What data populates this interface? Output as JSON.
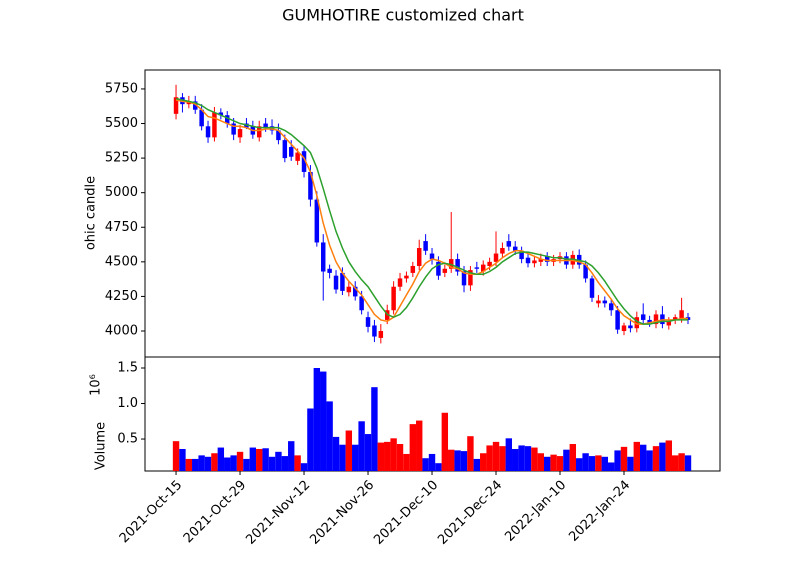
{
  "chart_data": {
    "type": "candlestick",
    "title": "GUMHOTIRE customized chart",
    "ylabel": "ohic candle",
    "volume_ylabel": "Volume",
    "volume_scale_label": "10⁶",
    "up_color": "#ff0000",
    "down_color": "#0000ff",
    "x": [
      0,
      1,
      2,
      3,
      4,
      5,
      6,
      7,
      8,
      9,
      10,
      11,
      12,
      13,
      14,
      15,
      16,
      17,
      18,
      19,
      20,
      21,
      22,
      23,
      24,
      25,
      26,
      27,
      28,
      29,
      30,
      31,
      32,
      33,
      34,
      35,
      36,
      37,
      38,
      39,
      40,
      41,
      42,
      43,
      44,
      45,
      46,
      47,
      48,
      49,
      50,
      51,
      52,
      53,
      54,
      55,
      56,
      57,
      58,
      59,
      60,
      61,
      62,
      63,
      64,
      65,
      66,
      67,
      68,
      69,
      70,
      71,
      72,
      73,
      74,
      75,
      76,
      77,
      78,
      79,
      80
    ],
    "open": [
      5570,
      5690,
      5640,
      5660,
      5600,
      5480,
      5400,
      5580,
      5560,
      5500,
      5400,
      5500,
      5480,
      5400,
      5500,
      5480,
      5450,
      5380,
      5330,
      5230,
      5300,
      5150,
      4950,
      4640,
      4450,
      4400,
      4420,
      4280,
      4320,
      4250,
      4100,
      4040,
      3950,
      4080,
      4150,
      4320,
      4380,
      4420,
      4470,
      4650,
      4560,
      4500,
      4420,
      4450,
      4520,
      4430,
      4330,
      4460,
      4430,
      4470,
      4500,
      4560,
      4650,
      4610,
      4580,
      4530,
      4490,
      4500,
      4540,
      4500,
      4520,
      4540,
      4480,
      4550,
      4480,
      4380,
      4200,
      4220,
      4200,
      4150,
      4000,
      4040,
      4020,
      4120,
      4080,
      4050,
      4120,
      4040,
      4080,
      4090,
      4100
    ],
    "high": [
      5780,
      5720,
      5700,
      5700,
      5640,
      5520,
      5620,
      5610,
      5590,
      5540,
      5490,
      5540,
      5520,
      5520,
      5540,
      5530,
      5500,
      5420,
      5380,
      5320,
      5340,
      5200,
      5010,
      4700,
      4480,
      4440,
      4460,
      4360,
      4360,
      4290,
      4140,
      4080,
      4050,
      4190,
      4360,
      4420,
      4430,
      4500,
      4660,
      4700,
      4600,
      4540,
      4480,
      4860,
      4560,
      4470,
      4470,
      4500,
      4510,
      4530,
      4720,
      4640,
      4700,
      4650,
      4610,
      4570,
      4540,
      4560,
      4570,
      4550,
      4570,
      4570,
      4580,
      4590,
      4510,
      4400,
      4260,
      4250,
      4230,
      4180,
      4060,
      4090,
      4140,
      4200,
      4110,
      4150,
      4180,
      4100,
      4120,
      4240,
      4130
    ],
    "low": [
      5530,
      5580,
      5610,
      5570,
      5450,
      5360,
      5370,
      5530,
      5470,
      5380,
      5360,
      5460,
      5390,
      5370,
      5440,
      5420,
      5350,
      5220,
      5230,
      5200,
      5110,
      4900,
      4610,
      4220,
      4380,
      4270,
      4260,
      4250,
      4220,
      4120,
      3990,
      3920,
      3910,
      4050,
      4120,
      4290,
      4350,
      4390,
      4440,
      4550,
      4480,
      4370,
      4390,
      4420,
      4400,
      4280,
      4290,
      4420,
      4400,
      4440,
      4470,
      4530,
      4580,
      4550,
      4490,
      4460,
      4460,
      4470,
      4470,
      4470,
      4490,
      4450,
      4450,
      4450,
      4350,
      4210,
      4170,
      4170,
      4110,
      3980,
      3970,
      3990,
      3990,
      4050,
      4030,
      4020,
      4020,
      4010,
      4050,
      4060,
      4050
    ],
    "close": [
      5690,
      5640,
      5660,
      5600,
      5480,
      5400,
      5580,
      5560,
      5500,
      5420,
      5460,
      5470,
      5420,
      5480,
      5470,
      5450,
      5380,
      5250,
      5260,
      5290,
      5150,
      4950,
      4640,
      4430,
      4420,
      4300,
      4290,
      4320,
      4250,
      4150,
      4030,
      3960,
      4000,
      4150,
      4320,
      4380,
      4400,
      4470,
      4600,
      4580,
      4520,
      4400,
      4450,
      4520,
      4430,
      4330,
      4440,
      4450,
      4480,
      4500,
      4560,
      4600,
      4610,
      4580,
      4520,
      4490,
      4510,
      4520,
      4500,
      4520,
      4540,
      4480,
      4550,
      4480,
      4380,
      4240,
      4220,
      4200,
      4150,
      4010,
      4040,
      4020,
      4100,
      4080,
      4060,
      4120,
      4050,
      4070,
      4100,
      4150,
      4080
    ],
    "volume": [
      0.47,
      0.36,
      0.22,
      0.22,
      0.27,
      0.25,
      0.3,
      0.38,
      0.24,
      0.27,
      0.32,
      0.22,
      0.38,
      0.36,
      0.37,
      0.25,
      0.32,
      0.26,
      0.47,
      0.27,
      0.16,
      0.93,
      1.5,
      1.45,
      1.03,
      0.53,
      0.42,
      0.62,
      0.42,
      0.75,
      0.57,
      1.23,
      0.45,
      0.46,
      0.51,
      0.43,
      0.29,
      0.71,
      0.76,
      0.23,
      0.29,
      0.16,
      0.87,
      0.35,
      0.34,
      0.33,
      0.54,
      0.22,
      0.3,
      0.41,
      0.46,
      0.4,
      0.51,
      0.36,
      0.41,
      0.4,
      0.38,
      0.3,
      0.25,
      0.28,
      0.26,
      0.35,
      0.43,
      0.23,
      0.3,
      0.26,
      0.27,
      0.25,
      0.17,
      0.34,
      0.39,
      0.25,
      0.46,
      0.42,
      0.34,
      0.4,
      0.45,
      0.48,
      0.27,
      0.3,
      0.27
    ],
    "series": [
      {
        "color": "#ff7f0e",
        "values": [
          5670,
          5660,
          5655,
          5640,
          5600,
          5550,
          5540,
          5520,
          5500,
          5480,
          5480,
          5470,
          5450,
          5450,
          5460,
          5460,
          5450,
          5400,
          5350,
          5300,
          5250,
          5150,
          4980,
          4780,
          4620,
          4500,
          4420,
          4360,
          4310,
          4260,
          4190,
          4120,
          4080,
          4070,
          4100,
          4180,
          4260,
          4340,
          4430,
          4490,
          4520,
          4510,
          4490,
          4460,
          4450,
          4420,
          4410,
          4410,
          4430,
          4460,
          4490,
          4530,
          4560,
          4580,
          4580,
          4560,
          4540,
          4520,
          4510,
          4510,
          4510,
          4510,
          4510,
          4500,
          4480,
          4420,
          4350,
          4290,
          4230,
          4160,
          4110,
          4080,
          4050,
          4050,
          4060,
          4070,
          4080,
          4080,
          4080,
          4090,
          4090
        ]
      },
      {
        "color": "#2ca02c",
        "values": [
          5680,
          5670,
          5660,
          5650,
          5630,
          5600,
          5580,
          5560,
          5540,
          5520,
          5500,
          5490,
          5480,
          5470,
          5470,
          5470,
          5470,
          5450,
          5420,
          5380,
          5340,
          5290,
          5180,
          5030,
          4870,
          4720,
          4600,
          4500,
          4430,
          4370,
          4320,
          4250,
          4180,
          4120,
          4100,
          4120,
          4170,
          4240,
          4320,
          4390,
          4450,
          4480,
          4490,
          4480,
          4460,
          4440,
          4420,
          4410,
          4410,
          4430,
          4460,
          4500,
          4530,
          4560,
          4570,
          4570,
          4560,
          4550,
          4540,
          4530,
          4530,
          4520,
          4520,
          4510,
          4500,
          4470,
          4420,
          4360,
          4290,
          4220,
          4160,
          4110,
          4070,
          4050,
          4050,
          4060,
          4070,
          4070,
          4080,
          4080,
          4080
        ]
      }
    ],
    "xlim": [
      -4.85,
      85
    ],
    "xticks": [
      {
        "value": 0,
        "label": "2021-Oct-15"
      },
      {
        "value": 10,
        "label": "2021-Oct-29"
      },
      {
        "value": 20,
        "label": "2021-Nov-12"
      },
      {
        "value": 30,
        "label": "2021-Nov-26"
      },
      {
        "value": 40,
        "label": "2021-Dec-10"
      },
      {
        "value": 50,
        "label": "2021-Dec-24"
      },
      {
        "value": 60,
        "label": "2022-Jan-10"
      },
      {
        "value": 70,
        "label": "2022-Jan-24"
      }
    ],
    "ylim": [
      3812,
      5887
    ],
    "yticks": [
      4000,
      4250,
      4500,
      4750,
      5000,
      5250,
      5500,
      5750
    ],
    "volume_ylim": [
      0.05,
      1.655
    ],
    "volume_yticks": [
      0.5,
      {
        "value": 1.0,
        "label": "1.0"
      },
      1.5
    ]
  }
}
